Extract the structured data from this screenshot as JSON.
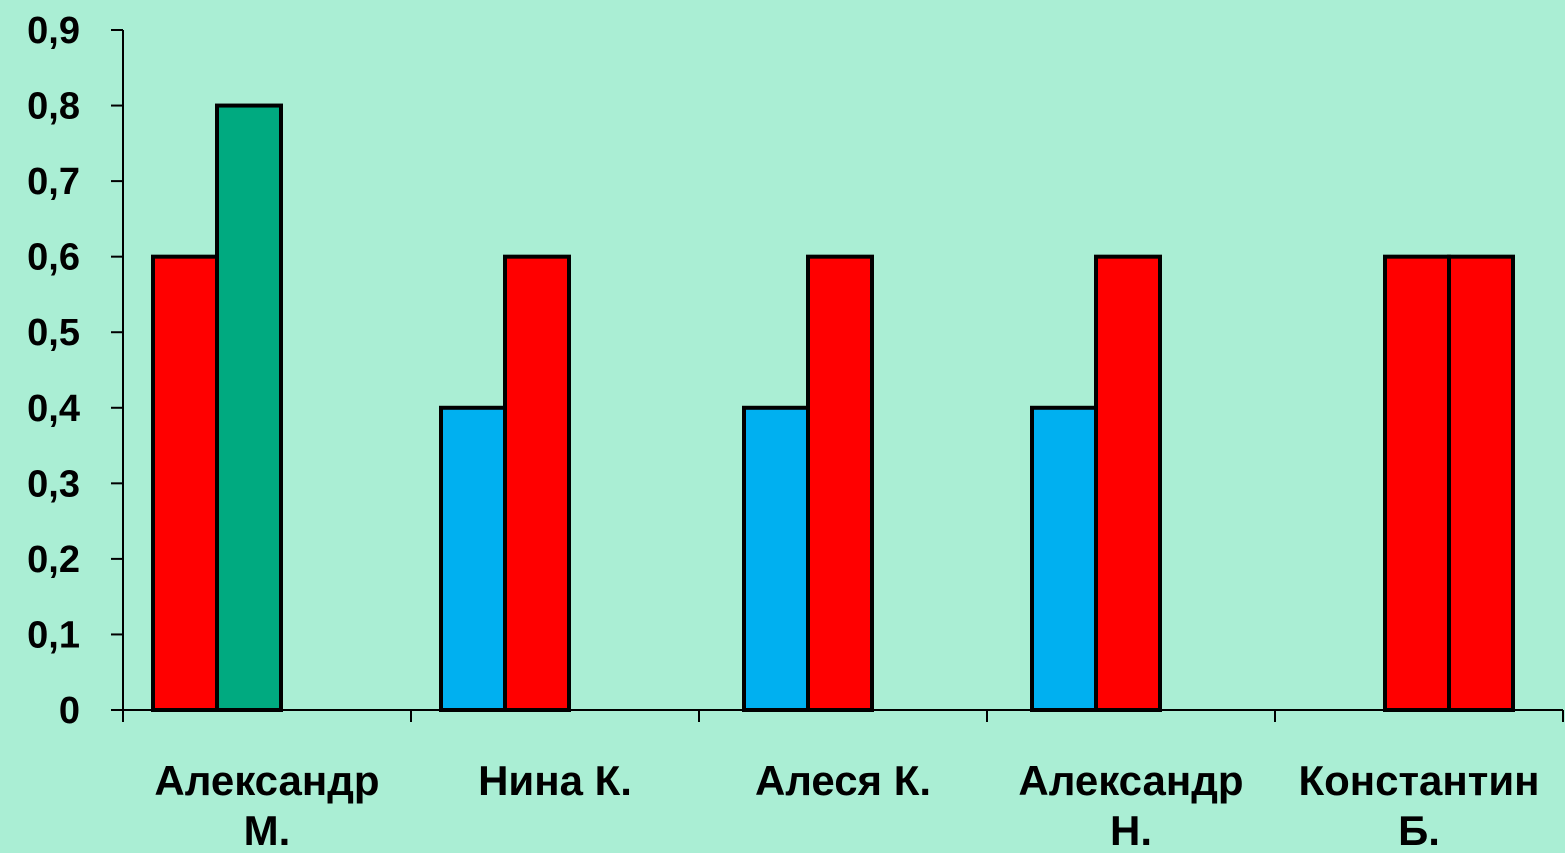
{
  "chart_data": {
    "type": "bar",
    "title": "",
    "xlabel": "",
    "ylabel": "",
    "ylim": [
      0,
      0.9
    ],
    "yticks": [
      "0",
      "0,1",
      "0,2",
      "0,3",
      "0,4",
      "0,5",
      "0,6",
      "0,7",
      "0,8",
      "0,9"
    ],
    "categories": [
      [
        "Александр",
        "М."
      ],
      [
        "Нина К."
      ],
      [
        "Алеся К."
      ],
      [
        "Александр",
        "Н."
      ],
      [
        "Константин",
        "Б."
      ]
    ],
    "bars": [
      [
        {
          "value": 0.6,
          "color": "#ff0000"
        },
        {
          "value": 0.8,
          "color": "#00aa80"
        }
      ],
      [
        {
          "value": 0.4,
          "color": "#00b0f0"
        },
        {
          "value": 0.6,
          "color": "#ff0000"
        }
      ],
      [
        {
          "value": 0.4,
          "color": "#00b0f0"
        },
        {
          "value": 0.6,
          "color": "#ff0000"
        }
      ],
      [
        {
          "value": 0.4,
          "color": "#00b0f0"
        },
        {
          "value": 0.6,
          "color": "#ff0000"
        }
      ],
      [
        {
          "value": 0.6,
          "color": "#ff0000"
        },
        {
          "value": 0.6,
          "color": "#ff0000"
        }
      ]
    ],
    "legend": null,
    "grid": false,
    "background": "#aaeed4"
  }
}
